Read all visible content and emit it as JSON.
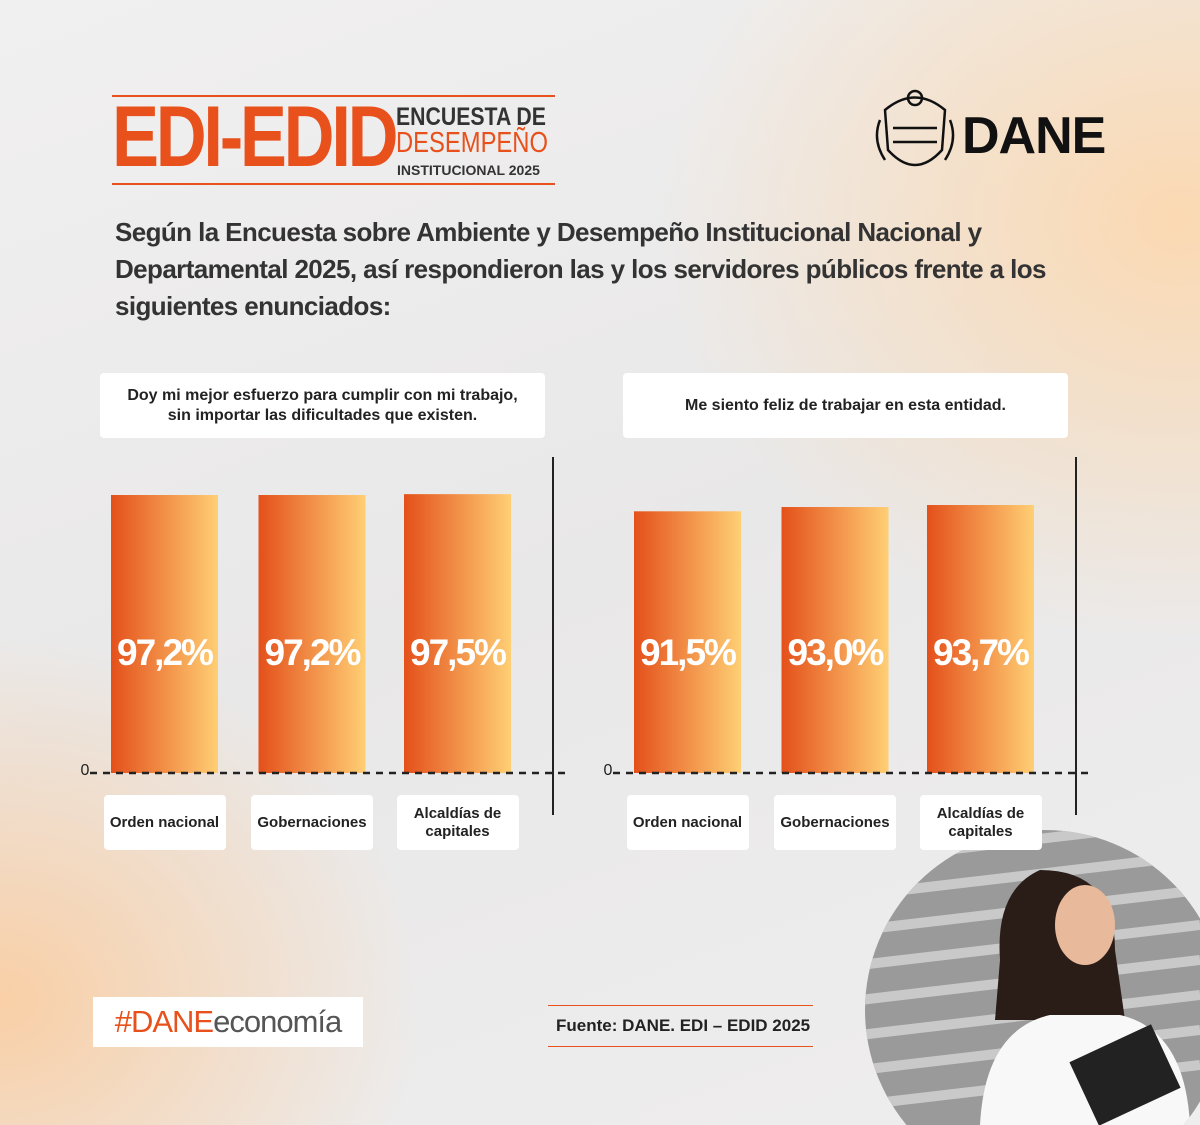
{
  "header": {
    "brand": "EDI-EDID",
    "survey_line1": "ENCUESTA DE",
    "survey_line2": "DESEMPEÑO",
    "survey_line3": "INSTITUCIONAL 2025",
    "logo": "DANE"
  },
  "intro": "Según la Encuesta sobre Ambiente y Desempeño Institucional Nacional y Departamental 2025, así respondieron las y los servidores públicos frente a los siguientes enunciados:",
  "chart_data": [
    {
      "type": "bar",
      "title": "Doy mi mejor esfuerzo para cumplir con mi trabajo, sin importar las dificultades que existen.",
      "categories": [
        "Orden nacional",
        "Gobernaciones",
        "Alcaldías de capitales"
      ],
      "values": [
        97.2,
        97.2,
        97.5
      ],
      "value_labels": [
        "97,2%",
        "97,2%",
        "97,5%"
      ],
      "ylim": [
        0,
        100
      ],
      "yticks": [
        0
      ],
      "gradient": [
        "#e4501b",
        "#ffcf74"
      ]
    },
    {
      "type": "bar",
      "title": "Me siento feliz de trabajar en esta entidad.",
      "categories": [
        "Orden nacional",
        "Gobernaciones",
        "Alcaldías de capitales"
      ],
      "values": [
        91.5,
        93.0,
        93.7
      ],
      "value_labels": [
        "91,5%",
        "93,0%",
        "93,7%"
      ],
      "ylim": [
        0,
        100
      ],
      "yticks": [
        0
      ],
      "gradient": [
        "#e4501b",
        "#ffcf74"
      ]
    }
  ],
  "hashtag": {
    "prefix": "#DANE",
    "suffix": "economía"
  },
  "source": "Fuente: DANE. EDI – EDID 2025"
}
